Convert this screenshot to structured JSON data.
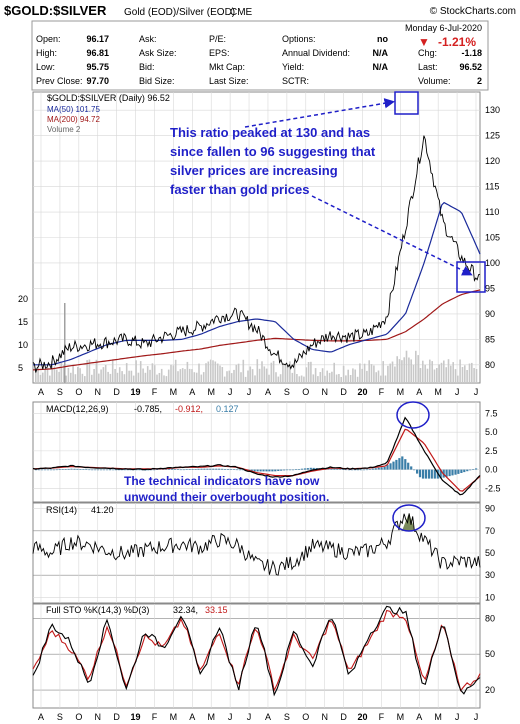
{
  "header": {
    "symbol": "$GOLD:$SILVER",
    "description": "Gold (EOD)/Silver (EOD)",
    "exchange": "CME",
    "copyright": "© StockCharts.com",
    "date": "Monday  6-Jul-2020",
    "change_pct": "-1.21%",
    "change_arrow": "▼"
  },
  "stats": [
    {
      "label": "Open:",
      "value": "96.17"
    },
    {
      "label": "High:",
      "value": "96.81"
    },
    {
      "label": "Low:",
      "value": "95.75"
    },
    {
      "label": "Prev Close:",
      "value": "97.70"
    },
    {
      "label": "Ask:",
      "value": ""
    },
    {
      "label": "Ask Size:",
      "value": ""
    },
    {
      "label": "Bid:",
      "value": ""
    },
    {
      "label": "Bid Size:",
      "value": ""
    },
    {
      "label": "P/E:",
      "value": ""
    },
    {
      "label": "EPS:",
      "value": ""
    },
    {
      "label": "Mkt Cap:",
      "value": ""
    },
    {
      "label": "Last Size:",
      "value": ""
    },
    {
      "label": "Options:",
      "value": "no"
    },
    {
      "label": "Annual Dividend:",
      "value": "N/A"
    },
    {
      "label": "Yield:",
      "value": "N/A"
    },
    {
      "label": "SCTR:",
      "value": ""
    },
    {
      "label": "Chg:",
      "value": "-1.18"
    },
    {
      "label": "Last:",
      "value": "96.52"
    },
    {
      "label": "Volume:",
      "value": "2"
    }
  ],
  "legend": {
    "price": "$GOLD:$SILVER (Daily) 96.52",
    "ma50": "MA(50) 101.75",
    "ma200": "MA(200) 94.72",
    "volume": "Volume 2"
  },
  "annotations": {
    "top": [
      "This ratio peaked at 130 and has",
      "since fallen to 96 suggesting that",
      "silver prices are increasing",
      "faster than gold prices"
    ],
    "macd": [
      "The technical indicators have now",
      "unwound their overbought position."
    ]
  },
  "panels": {
    "macd": {
      "label": "MACD(12,26,9)",
      "v1": "-0.785,",
      "v2": "-0.912,",
      "v3": "0.127"
    },
    "rsi": {
      "label": "RSI(14)",
      "v1": "41.20"
    },
    "sto": {
      "label": "Full STO %K(14,3) %D(3)",
      "v1": "32.34,",
      "v2": "33.15"
    }
  },
  "colors": {
    "price": "#000000",
    "ma50": "#1a2a9a",
    "ma200": "#a01818",
    "volume": "#c8c8c8",
    "annotation": "#1f1fc8",
    "macd_hist": "#3a7ea8",
    "macd_signal": "#c21a1a",
    "rsi_fill": "#7a8a5a",
    "sto_k": "#000000",
    "sto_d": "#c21a1a",
    "panel_bg": "#ffffff",
    "grid": "#d8d8d8"
  },
  "chart_data": [
    {
      "type": "line",
      "title": "$GOLD:$SILVER (Daily)",
      "x": [
        "Jul-18",
        "Aug-18",
        "Sep-18",
        "Oct-18",
        "Nov-18",
        "Dec-18",
        "Jan-19",
        "Feb-19",
        "Mar-19",
        "Apr-19",
        "May-19",
        "Jun-19",
        "Jul-19",
        "Aug-19",
        "Sep-19",
        "Oct-19",
        "Nov-19",
        "Dec-19",
        "Jan-20",
        "Feb-20",
        "Mar-20",
        "Apr-20",
        "May-20",
        "Jun-20",
        "Jul-20"
      ],
      "series": [
        {
          "name": "$GOLD:$SILVER",
          "values": [
            79.5,
            80.5,
            83.5,
            84.0,
            84.5,
            85.0,
            84.0,
            85.5,
            86.5,
            87.5,
            89.5,
            90.0,
            87.0,
            82.0,
            80.0,
            84.0,
            86.0,
            85.5,
            86.0,
            89.5,
            107.0,
            125.0,
            108.0,
            101.0,
            96.52
          ]
        },
        {
          "name": "MA(50)",
          "values": [
            80.0,
            80.0,
            81.0,
            82.5,
            84.0,
            84.8,
            84.8,
            84.8,
            85.0,
            86.0,
            87.5,
            88.5,
            89.0,
            88.5,
            85.0,
            83.0,
            82.5,
            84.0,
            85.0,
            86.0,
            90.0,
            100.0,
            112.0,
            110.0,
            101.75
          ]
        },
        {
          "name": "MA(200)",
          "values": [
            79.0,
            79.2,
            79.8,
            80.3,
            80.8,
            81.3,
            81.8,
            82.2,
            82.7,
            83.1,
            83.8,
            84.3,
            84.8,
            85.2,
            85.0,
            84.8,
            84.7,
            84.7,
            84.8,
            85.0,
            86.5,
            89.0,
            92.0,
            93.8,
            94.72
          ]
        }
      ],
      "ylim": [
        78,
        132
      ],
      "y_ticks": [
        80,
        85,
        90,
        95,
        100,
        105,
        110,
        115,
        120,
        125,
        130
      ],
      "volume_ticks": [
        5,
        10,
        15,
        20
      ],
      "x_tick_labels": [
        "A",
        "S",
        "O",
        "N",
        "D",
        "19",
        "F",
        "M",
        "A",
        "M",
        "J",
        "J",
        "A",
        "S",
        "O",
        "N",
        "D",
        "20",
        "F",
        "M",
        "A",
        "M",
        "J",
        "J"
      ]
    },
    {
      "type": "line",
      "title": "MACD(12,26,9)",
      "x": [
        "Jul-18",
        "Aug-18",
        "Sep-18",
        "Oct-18",
        "Nov-18",
        "Dec-18",
        "Jan-19",
        "Feb-19",
        "Mar-19",
        "Apr-19",
        "May-19",
        "Jun-19",
        "Jul-19",
        "Aug-19",
        "Sep-19",
        "Oct-19",
        "Nov-19",
        "Dec-19",
        "Jan-20",
        "Feb-20",
        "Mar-20",
        "Apr-20",
        "May-20",
        "Jun-20",
        "Jul-20"
      ],
      "series": [
        {
          "name": "MACD",
          "values": [
            0.1,
            0.2,
            0.5,
            0.3,
            0.2,
            0.1,
            0.0,
            0.2,
            0.3,
            0.4,
            0.6,
            0.3,
            -0.6,
            -1.0,
            -0.8,
            0.0,
            0.3,
            0.1,
            0.2,
            0.8,
            7.0,
            2.5,
            -1.5,
            -3.5,
            -0.785
          ]
        },
        {
          "name": "Signal",
          "values": [
            0.1,
            0.2,
            0.4,
            0.3,
            0.2,
            0.1,
            0.1,
            0.1,
            0.3,
            0.3,
            0.5,
            0.3,
            -0.4,
            -0.8,
            -0.8,
            -0.2,
            0.2,
            0.1,
            0.2,
            0.5,
            5.5,
            3.5,
            -0.5,
            -3.0,
            -0.912
          ]
        },
        {
          "name": "Histogram",
          "values": [
            0.0,
            0.0,
            0.1,
            0.0,
            0.0,
            0.0,
            -0.1,
            0.1,
            0.0,
            0.1,
            0.1,
            0.0,
            -0.2,
            -0.2,
            0.0,
            0.2,
            0.1,
            0.0,
            0.0,
            0.3,
            1.5,
            -1.0,
            -1.0,
            -0.5,
            0.127
          ]
        }
      ],
      "ylim": [
        -3.8,
        8.5
      ],
      "y_ticks": [
        -2.5,
        0.0,
        2.5,
        5.0,
        7.5
      ]
    },
    {
      "type": "line",
      "title": "RSI(14)",
      "x": [
        "Jul-18",
        "Aug-18",
        "Sep-18",
        "Oct-18",
        "Nov-18",
        "Dec-18",
        "Jan-19",
        "Feb-19",
        "Mar-19",
        "Apr-19",
        "May-19",
        "Jun-19",
        "Jul-19",
        "Aug-19",
        "Sep-19",
        "Oct-19",
        "Nov-19",
        "Dec-19",
        "Jan-20",
        "Feb-20",
        "Mar-20",
        "Apr-20",
        "May-20",
        "Jun-20",
        "Jul-20"
      ],
      "series": [
        {
          "name": "RSI(14)",
          "values": [
            55,
            50,
            60,
            58,
            52,
            49,
            53,
            56,
            58,
            55,
            62,
            57,
            40,
            36,
            42,
            56,
            54,
            50,
            52,
            60,
            86,
            62,
            40,
            43,
            41.2
          ]
        }
      ],
      "ylim": [
        5,
        95
      ],
      "y_ticks": [
        10,
        30,
        50,
        70,
        90
      ]
    },
    {
      "type": "line",
      "title": "Full STO %K(14,3) %D(3)",
      "x": [
        "Jul-18",
        "Aug-18",
        "Sep-18",
        "Oct-18",
        "Nov-18",
        "Dec-18",
        "Jan-19",
        "Feb-19",
        "Mar-19",
        "Apr-19",
        "May-19",
        "Jun-19",
        "Jul-19",
        "Aug-19",
        "Sep-19",
        "Oct-19",
        "Nov-19",
        "Dec-19",
        "Jan-20",
        "Feb-20",
        "Mar-20",
        "Apr-20",
        "May-20",
        "Jun-20",
        "Jul-20"
      ],
      "series": [
        {
          "name": "%K",
          "values": [
            30,
            75,
            60,
            25,
            80,
            20,
            70,
            55,
            85,
            30,
            75,
            20,
            80,
            15,
            70,
            40,
            85,
            30,
            65,
            88,
            85,
            20,
            80,
            15,
            32.34
          ]
        },
        {
          "name": "%D",
          "values": [
            35,
            70,
            55,
            30,
            75,
            25,
            65,
            55,
            80,
            35,
            70,
            25,
            75,
            20,
            65,
            45,
            80,
            35,
            60,
            85,
            82,
            25,
            75,
            20,
            33.15
          ]
        }
      ],
      "ylim": [
        5,
        92
      ],
      "y_ticks": [
        20,
        50,
        80
      ]
    }
  ]
}
